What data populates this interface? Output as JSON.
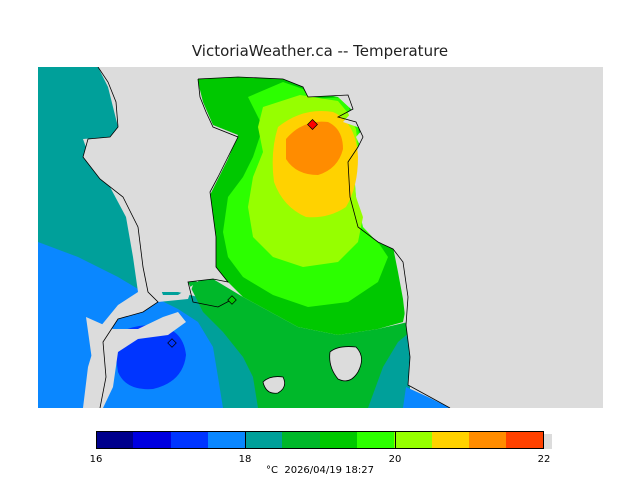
{
  "title": "VictoriaWeather.ca -- Temperature",
  "colorbar": {
    "colors": [
      "#00008c",
      "#0000e0",
      "#0035ff",
      "#0a87ff",
      "#00a09a",
      "#00b82a",
      "#00c800",
      "#2cff00",
      "#96ff00",
      "#ffd200",
      "#ff8c00",
      "#ff4100",
      "#ff0000"
    ],
    "labels": [
      {
        "text": "16",
        "value": 16
      },
      {
        "text": "18",
        "value": 18
      },
      {
        "text": "20",
        "value": 20
      },
      {
        "text": "22",
        "value": 22
      }
    ]
  },
  "footer": {
    "unit": "°C",
    "timestamp": "2026/04/19 18:27"
  },
  "colors": {
    "land_gray": "#dcdcdc",
    "coast_line": "#000000"
  }
}
